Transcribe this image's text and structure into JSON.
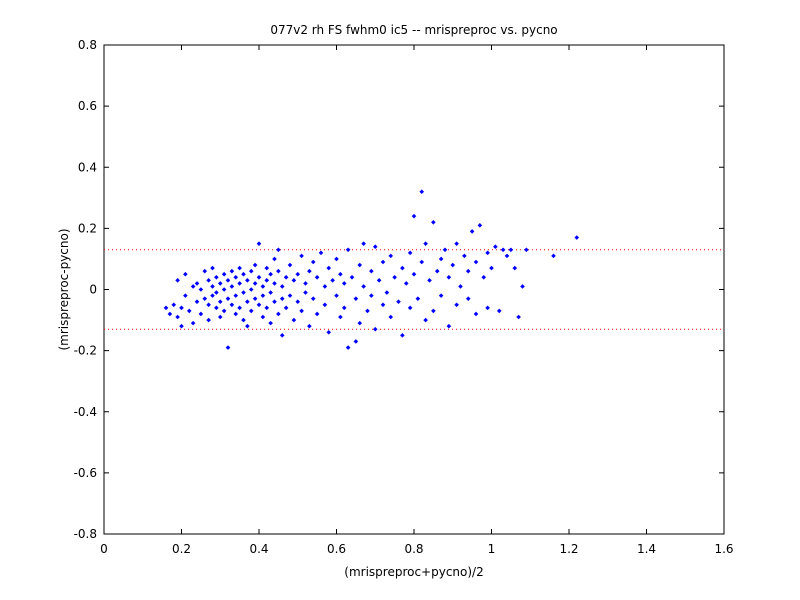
{
  "chart_data": {
    "type": "scatter",
    "title": "077v2 rh FS fwhm0 ic5 -- mrispreproc vs. pycno",
    "xlabel": "(mrispreproc+pycno)/2",
    "ylabel": "(mrispreproc-pycno)",
    "xlim": [
      0,
      1.6
    ],
    "ylim": [
      -0.8,
      0.8
    ],
    "xticks": [
      "0",
      "0.2",
      "0.4",
      "0.6",
      "0.8",
      "1",
      "1.2",
      "1.4",
      "1.6"
    ],
    "yticks": [
      "0.8",
      "0.6",
      "0.4",
      "0.2",
      "0",
      "-0.2",
      "-0.4",
      "-0.6",
      "-0.8"
    ],
    "grid": false,
    "marker_color": "#0000ff",
    "reference_lines": {
      "y": [
        0.13,
        -0.13
      ],
      "color": "#ff0000",
      "style": "dotted"
    },
    "series": [
      {
        "points": [
          [
            0.16,
            -0.06
          ],
          [
            0.17,
            -0.08
          ],
          [
            0.18,
            -0.05
          ],
          [
            0.19,
            -0.09
          ],
          [
            0.19,
            0.03
          ],
          [
            0.2,
            -0.12
          ],
          [
            0.2,
            -0.06
          ],
          [
            0.21,
            0.05
          ],
          [
            0.21,
            -0.02
          ],
          [
            0.22,
            -0.07
          ],
          [
            0.23,
            0.01
          ],
          [
            0.23,
            -0.11
          ],
          [
            0.24,
            -0.04
          ],
          [
            0.24,
            0.02
          ],
          [
            0.25,
            -0.08
          ],
          [
            0.25,
            0.0
          ],
          [
            0.26,
            -0.03
          ],
          [
            0.26,
            0.06
          ],
          [
            0.27,
            -0.05
          ],
          [
            0.27,
            0.03
          ],
          [
            0.27,
            -0.1
          ],
          [
            0.28,
            0.01
          ],
          [
            0.28,
            -0.02
          ],
          [
            0.28,
            0.07
          ],
          [
            0.29,
            -0.06
          ],
          [
            0.29,
            0.04
          ],
          [
            0.29,
            -0.01
          ],
          [
            0.3,
            -0.09
          ],
          [
            0.3,
            0.02
          ],
          [
            0.3,
            -0.04
          ],
          [
            0.31,
            0.05
          ],
          [
            0.31,
            -0.07
          ],
          [
            0.31,
            0.0
          ],
          [
            0.32,
            -0.19
          ],
          [
            0.32,
            0.03
          ],
          [
            0.32,
            -0.03
          ],
          [
            0.33,
            0.06
          ],
          [
            0.33,
            -0.05
          ],
          [
            0.33,
            0.01
          ],
          [
            0.34,
            -0.08
          ],
          [
            0.34,
            0.04
          ],
          [
            0.34,
            -0.02
          ],
          [
            0.35,
            0.07
          ],
          [
            0.35,
            -0.06
          ],
          [
            0.35,
            0.02
          ],
          [
            0.36,
            -0.1
          ],
          [
            0.36,
            -0.01
          ],
          [
            0.36,
            0.05
          ],
          [
            0.37,
            -0.04
          ],
          [
            0.37,
            0.03
          ],
          [
            0.37,
            -0.12
          ],
          [
            0.38,
            0.0
          ],
          [
            0.38,
            0.06
          ],
          [
            0.38,
            -0.07
          ],
          [
            0.39,
            0.02
          ],
          [
            0.39,
            -0.03
          ],
          [
            0.39,
            0.08
          ],
          [
            0.4,
            -0.05
          ],
          [
            0.4,
            0.04
          ],
          [
            0.4,
            0.15
          ],
          [
            0.41,
            -0.09
          ],
          [
            0.41,
            0.01
          ],
          [
            0.41,
            -0.02
          ],
          [
            0.42,
            0.07
          ],
          [
            0.42,
            -0.06
          ],
          [
            0.42,
            0.03
          ],
          [
            0.43,
            -0.11
          ],
          [
            0.43,
            0.05
          ],
          [
            0.43,
            -0.01
          ],
          [
            0.44,
            0.1
          ],
          [
            0.44,
            -0.04
          ],
          [
            0.44,
            0.02
          ],
          [
            0.45,
            -0.08
          ],
          [
            0.45,
            0.06
          ],
          [
            0.45,
            0.13
          ],
          [
            0.46,
            -0.03
          ],
          [
            0.46,
            0.01
          ],
          [
            0.46,
            -0.15
          ],
          [
            0.47,
            0.04
          ],
          [
            0.47,
            -0.06
          ],
          [
            0.48,
            0.08
          ],
          [
            0.48,
            -0.02
          ],
          [
            0.49,
            0.03
          ],
          [
            0.49,
            -0.1
          ],
          [
            0.5,
            0.05
          ],
          [
            0.5,
            -0.04
          ],
          [
            0.51,
            0.11
          ],
          [
            0.51,
            -0.07
          ],
          [
            0.52,
            0.02
          ],
          [
            0.52,
            -0.01
          ],
          [
            0.53,
            0.06
          ],
          [
            0.53,
            -0.12
          ],
          [
            0.54,
            0.09
          ],
          [
            0.54,
            -0.03
          ],
          [
            0.55,
            0.04
          ],
          [
            0.55,
            -0.08
          ],
          [
            0.56,
            0.12
          ],
          [
            0.57,
            0.01
          ],
          [
            0.57,
            -0.05
          ],
          [
            0.58,
            0.07
          ],
          [
            0.58,
            -0.14
          ],
          [
            0.59,
            0.03
          ],
          [
            0.6,
            -0.02
          ],
          [
            0.6,
            0.1
          ],
          [
            0.61,
            0.05
          ],
          [
            0.61,
            -0.09
          ],
          [
            0.62,
            0.02
          ],
          [
            0.62,
            -0.06
          ],
          [
            0.63,
            0.13
          ],
          [
            0.63,
            -0.19
          ],
          [
            0.64,
            0.04
          ],
          [
            0.65,
            -0.03
          ],
          [
            0.65,
            -0.17
          ],
          [
            0.66,
            0.08
          ],
          [
            0.66,
            -0.11
          ],
          [
            0.67,
            0.01
          ],
          [
            0.67,
            0.15
          ],
          [
            0.68,
            -0.07
          ],
          [
            0.69,
            0.06
          ],
          [
            0.69,
            -0.02
          ],
          [
            0.7,
            0.14
          ],
          [
            0.7,
            -0.13
          ],
          [
            0.71,
            0.03
          ],
          [
            0.72,
            -0.05
          ],
          [
            0.72,
            0.09
          ],
          [
            0.73,
            -0.01
          ],
          [
            0.74,
            0.11
          ],
          [
            0.74,
            -0.09
          ],
          [
            0.75,
            0.04
          ],
          [
            0.76,
            -0.04
          ],
          [
            0.77,
            0.07
          ],
          [
            0.77,
            -0.15
          ],
          [
            0.78,
            0.02
          ],
          [
            0.79,
            0.12
          ],
          [
            0.79,
            -0.06
          ],
          [
            0.8,
            0.05
          ],
          [
            0.8,
            0.24
          ],
          [
            0.81,
            -0.03
          ],
          [
            0.82,
            0.32
          ],
          [
            0.82,
            0.09
          ],
          [
            0.83,
            -0.1
          ],
          [
            0.83,
            0.15
          ],
          [
            0.84,
            0.03
          ],
          [
            0.85,
            0.22
          ],
          [
            0.85,
            -0.07
          ],
          [
            0.86,
            0.06
          ],
          [
            0.87,
            0.1
          ],
          [
            0.87,
            -0.02
          ],
          [
            0.88,
            0.13
          ],
          [
            0.89,
            -0.12
          ],
          [
            0.89,
            0.04
          ],
          [
            0.9,
            0.08
          ],
          [
            0.91,
            -0.05
          ],
          [
            0.91,
            0.15
          ],
          [
            0.92,
            0.01
          ],
          [
            0.93,
            0.11
          ],
          [
            0.94,
            -0.03
          ],
          [
            0.94,
            0.06
          ],
          [
            0.95,
            0.19
          ],
          [
            0.96,
            0.09
          ],
          [
            0.96,
            -0.08
          ],
          [
            0.97,
            0.21
          ],
          [
            0.98,
            0.04
          ],
          [
            0.99,
            0.12
          ],
          [
            0.99,
            -0.06
          ],
          [
            1.0,
            0.07
          ],
          [
            1.01,
            0.14
          ],
          [
            1.02,
            -0.07
          ],
          [
            1.03,
            0.13
          ],
          [
            1.04,
            0.11
          ],
          [
            1.05,
            0.13
          ],
          [
            1.06,
            0.07
          ],
          [
            1.07,
            -0.09
          ],
          [
            1.08,
            0.01
          ],
          [
            1.09,
            0.13
          ],
          [
            1.16,
            0.11
          ],
          [
            1.22,
            0.17
          ]
        ]
      }
    ]
  }
}
